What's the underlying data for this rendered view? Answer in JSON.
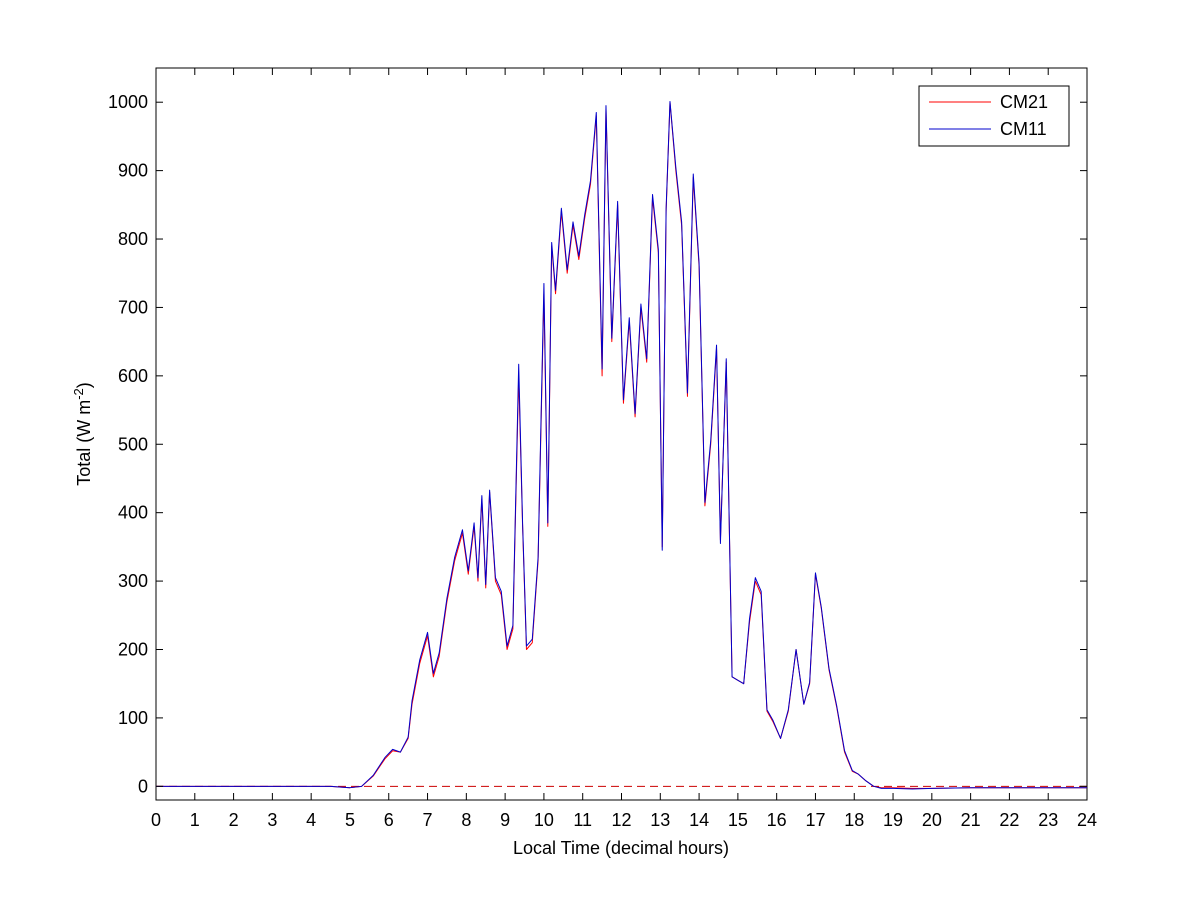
{
  "chart_data": {
    "type": "line",
    "xlabel": "Local Time (decimal hours)",
    "ylabel": "Total (W m",
    "ylabel_superscript": "-2",
    "ylabel_suffix": ")",
    "xlim": [
      0,
      24
    ],
    "ylim": [
      -20,
      1050
    ],
    "xticks": [
      0,
      1,
      2,
      3,
      4,
      5,
      6,
      7,
      8,
      9,
      10,
      11,
      12,
      13,
      14,
      15,
      16,
      17,
      18,
      19,
      20,
      21,
      22,
      23,
      24
    ],
    "yticks": [
      0,
      100,
      200,
      300,
      400,
      500,
      600,
      700,
      800,
      900,
      1000
    ],
    "grid": false,
    "legend_position": "top-right",
    "zero_line": {
      "style": "dashed",
      "color": "#cc0000"
    },
    "series": [
      {
        "name": "CM21",
        "color": "#ff0000",
        "x": [
          0,
          4.5,
          5.0,
          5.3,
          5.6,
          5.9,
          6.1,
          6.3,
          6.5,
          6.6,
          6.8,
          7.0,
          7.15,
          7.3,
          7.5,
          7.7,
          7.9,
          8.05,
          8.2,
          8.3,
          8.4,
          8.5,
          8.6,
          8.75,
          8.9,
          9.05,
          9.2,
          9.35,
          9.45,
          9.55,
          9.7,
          9.85,
          10.0,
          10.1,
          10.2,
          10.3,
          10.45,
          10.6,
          10.75,
          10.9,
          11.05,
          11.2,
          11.35,
          11.5,
          11.6,
          11.75,
          11.9,
          12.05,
          12.2,
          12.35,
          12.5,
          12.65,
          12.8,
          12.95,
          13.05,
          13.15,
          13.25,
          13.4,
          13.55,
          13.7,
          13.85,
          14.0,
          14.15,
          14.3,
          14.45,
          14.55,
          14.7,
          14.85,
          15.0,
          15.15,
          15.3,
          15.45,
          15.6,
          15.75,
          15.9,
          16.1,
          16.3,
          16.5,
          16.7,
          16.85,
          17.0,
          17.15,
          17.35,
          17.55,
          17.75,
          17.95,
          18.1,
          18.3,
          18.5,
          18.7,
          19.0,
          19.5,
          20.0,
          21.0,
          22.0,
          23.0,
          24.0
        ],
        "y": [
          0,
          0,
          -2,
          0,
          15,
          40,
          52,
          50,
          70,
          120,
          180,
          220,
          160,
          190,
          270,
          330,
          370,
          310,
          380,
          300,
          420,
          290,
          430,
          300,
          280,
          200,
          230,
          600,
          380,
          200,
          210,
          330,
          720,
          380,
          790,
          720,
          840,
          750,
          820,
          770,
          830,
          880,
          980,
          600,
          990,
          650,
          850,
          560,
          680,
          540,
          700,
          620,
          860,
          780,
          350,
          840,
          1000,
          900,
          820,
          570,
          890,
          760,
          410,
          500,
          640,
          360,
          620,
          160,
          155,
          150,
          240,
          300,
          280,
          110,
          95,
          70,
          110,
          200,
          120,
          150,
          310,
          260,
          170,
          115,
          50,
          22,
          18,
          8,
          0,
          -2,
          -2,
          -3,
          -3,
          -2,
          -2,
          -2,
          -2
        ]
      },
      {
        "name": "CM11",
        "color": "#0000cc",
        "x": [
          0,
          4.5,
          5.0,
          5.3,
          5.6,
          5.9,
          6.1,
          6.3,
          6.5,
          6.6,
          6.8,
          7.0,
          7.15,
          7.3,
          7.5,
          7.7,
          7.9,
          8.05,
          8.2,
          8.3,
          8.4,
          8.5,
          8.6,
          8.75,
          8.9,
          9.05,
          9.2,
          9.35,
          9.45,
          9.55,
          9.7,
          9.85,
          10.0,
          10.1,
          10.2,
          10.3,
          10.45,
          10.6,
          10.75,
          10.9,
          11.05,
          11.2,
          11.35,
          11.5,
          11.6,
          11.75,
          11.9,
          12.05,
          12.2,
          12.35,
          12.5,
          12.65,
          12.8,
          12.95,
          13.05,
          13.15,
          13.25,
          13.4,
          13.55,
          13.7,
          13.85,
          14.0,
          14.15,
          14.3,
          14.45,
          14.55,
          14.7,
          14.85,
          15.0,
          15.15,
          15.3,
          15.45,
          15.6,
          15.75,
          15.9,
          16.1,
          16.3,
          16.5,
          16.7,
          16.85,
          17.0,
          17.15,
          17.35,
          17.55,
          17.75,
          17.95,
          18.1,
          18.3,
          18.5,
          18.7,
          19.0,
          19.5,
          20.0,
          21.0,
          22.0,
          23.0,
          24.0
        ],
        "y": [
          0,
          0,
          -2,
          0,
          16,
          42,
          54,
          50,
          72,
          125,
          185,
          225,
          165,
          195,
          275,
          335,
          375,
          315,
          385,
          305,
          425,
          295,
          433,
          305,
          285,
          205,
          235,
          617,
          385,
          205,
          215,
          335,
          735,
          385,
          795,
          725,
          845,
          755,
          825,
          775,
          835,
          885,
          985,
          610,
          995,
          655,
          855,
          565,
          685,
          545,
          705,
          625,
          865,
          785,
          345,
          845,
          1001,
          905,
          825,
          575,
          895,
          765,
          415,
          505,
          645,
          355,
          625,
          160,
          155,
          150,
          245,
          305,
          285,
          112,
          97,
          70,
          112,
          200,
          120,
          152,
          312,
          262,
          172,
          117,
          52,
          23,
          18,
          8,
          0,
          -3,
          -3,
          -4,
          -3,
          -2,
          -2,
          -2,
          -2
        ]
      }
    ]
  }
}
